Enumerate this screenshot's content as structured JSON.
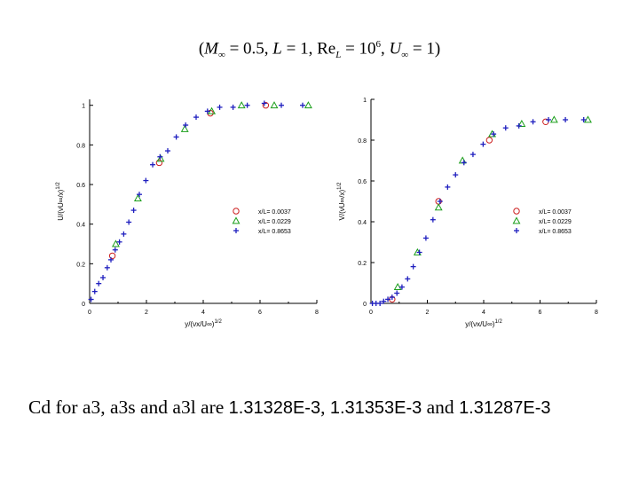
{
  "header": {
    "open_paren": "(",
    "M": "M",
    "M_sub": "∞",
    "eq1": " = 0.5, ",
    "L": "L",
    "eq2": " = 1, Re",
    "Re_sub": "L",
    "eq3": " = 10",
    "Re_sup": "6",
    "sep": ", ",
    "U": "U",
    "U_sub": "∞",
    "eq4": " = 1)"
  },
  "footer": {
    "prefix": "Cd for a3, a3s and a3l are ",
    "v1": "1.31328E-3",
    "sep1": ", ",
    "v2": "1.31353E-3",
    "sep2": " and ",
    "v3": "1.31287E-3"
  },
  "colors": {
    "series_1": "#cc1f1f",
    "series_2": "#1a9e1a",
    "series_3": "#1f1fbf",
    "axis": "#000000"
  },
  "chart_data": [
    {
      "type": "scatter",
      "xlabel": "y/(νx/U∞)^1/2",
      "ylabel": "U/(νU∞/x)^1/2",
      "xlim": [
        0,
        8
      ],
      "ylim": [
        0,
        1.03
      ],
      "xticks": [
        "0",
        "2",
        "4",
        "6",
        "8"
      ],
      "yticks": [
        "0",
        "0.2",
        "0.4",
        "0.6",
        "0.8",
        "1"
      ],
      "legend_position": "right-middle",
      "series": [
        {
          "name": "x/L= 0.0037",
          "marker": "circle",
          "x": [
            0.8,
            2.45,
            4.25,
            6.2
          ],
          "y": [
            0.24,
            0.71,
            0.96,
            1.0
          ]
        },
        {
          "name": "x/L= 0.0229",
          "marker": "triangle",
          "x": [
            0.92,
            1.7,
            2.5,
            3.35,
            4.3,
            5.35,
            6.5,
            7.7
          ],
          "y": [
            0.3,
            0.53,
            0.73,
            0.88,
            0.97,
            1.0,
            1.0,
            1.0
          ]
        },
        {
          "name": "x/L= 0.8653",
          "marker": "plus",
          "x": [
            0.05,
            0.18,
            0.32,
            0.47,
            0.62,
            0.75,
            0.9,
            1.05,
            1.2,
            1.38,
            1.55,
            1.75,
            1.98,
            2.22,
            2.48,
            2.75,
            3.05,
            3.38,
            3.75,
            4.15,
            4.58,
            5.05,
            5.55,
            6.15,
            6.75,
            7.5
          ],
          "y": [
            0.02,
            0.06,
            0.1,
            0.13,
            0.18,
            0.22,
            0.27,
            0.31,
            0.35,
            0.41,
            0.47,
            0.55,
            0.62,
            0.7,
            0.74,
            0.77,
            0.84,
            0.9,
            0.94,
            0.97,
            0.99,
            0.99,
            1.0,
            1.01,
            1.0,
            1.0
          ]
        }
      ]
    },
    {
      "type": "scatter",
      "xlabel": "y/(νx/U∞)^1/2",
      "ylabel": "V/(νU∞/x)^1/2",
      "xlim": [
        0,
        8
      ],
      "ylim": [
        0,
        1
      ],
      "xticks": [
        "0",
        "2",
        "4",
        "6",
        "8"
      ],
      "yticks": [
        "0",
        "0.2",
        "0.4",
        "0.6",
        "0.8",
        "1"
      ],
      "legend_position": "right-middle",
      "series": [
        {
          "name": "x/L= 0.0037",
          "marker": "circle",
          "x": [
            0.75,
            2.4,
            4.2,
            6.2
          ],
          "y": [
            0.02,
            0.5,
            0.8,
            0.89
          ]
        },
        {
          "name": "x/L= 0.0229",
          "marker": "triangle",
          "x": [
            0.95,
            1.65,
            2.4,
            3.25,
            4.3,
            5.35,
            6.5,
            7.7
          ],
          "y": [
            0.08,
            0.25,
            0.47,
            0.7,
            0.83,
            0.88,
            0.9,
            0.9
          ]
        },
        {
          "name": "x/L= 0.8653",
          "marker": "plus",
          "x": [
            0.05,
            0.18,
            0.32,
            0.45,
            0.6,
            0.75,
            0.92,
            1.1,
            1.3,
            1.5,
            1.72,
            1.95,
            2.2,
            2.45,
            2.72,
            3.0,
            3.3,
            3.62,
            3.98,
            4.35,
            4.78,
            5.25,
            5.75,
            6.3,
            6.9,
            7.55
          ],
          "y": [
            0.0,
            0.0,
            0.0,
            0.01,
            0.02,
            0.03,
            0.05,
            0.08,
            0.12,
            0.18,
            0.25,
            0.32,
            0.41,
            0.5,
            0.57,
            0.63,
            0.69,
            0.73,
            0.78,
            0.83,
            0.86,
            0.87,
            0.89,
            0.9,
            0.9,
            0.9
          ]
        }
      ]
    }
  ]
}
